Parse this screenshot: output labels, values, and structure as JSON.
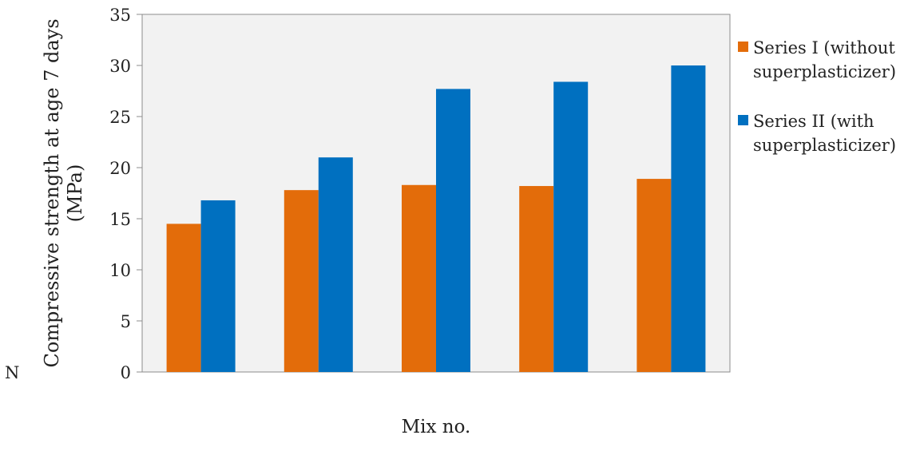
{
  "chart_data": {
    "type": "bar",
    "title": "",
    "xlabel": "Mix no.",
    "ylabel_lines": [
      "Compressive strength at age 7 days",
      "(MPa)"
    ],
    "stray_label": "N",
    "categories": [
      "",
      "",
      "",
      "",
      ""
    ],
    "ylim": [
      0,
      35
    ],
    "yticks": [
      "0",
      "5",
      "10",
      "15",
      "20",
      "25",
      "30",
      "35"
    ],
    "grid": false,
    "legend_position": "right",
    "plot_background": "#f2f2f2",
    "series": [
      {
        "name_lines": [
          "Series I (without",
          "superplasticizer)"
        ],
        "color": "#e36c0a",
        "values": [
          14.5,
          17.8,
          18.3,
          18.2,
          18.9
        ]
      },
      {
        "name_lines": [
          "Series II (with",
          "superplasticizer)"
        ],
        "color": "#0070c0",
        "values": [
          16.8,
          21.0,
          27.7,
          28.4,
          30.0
        ]
      }
    ]
  }
}
